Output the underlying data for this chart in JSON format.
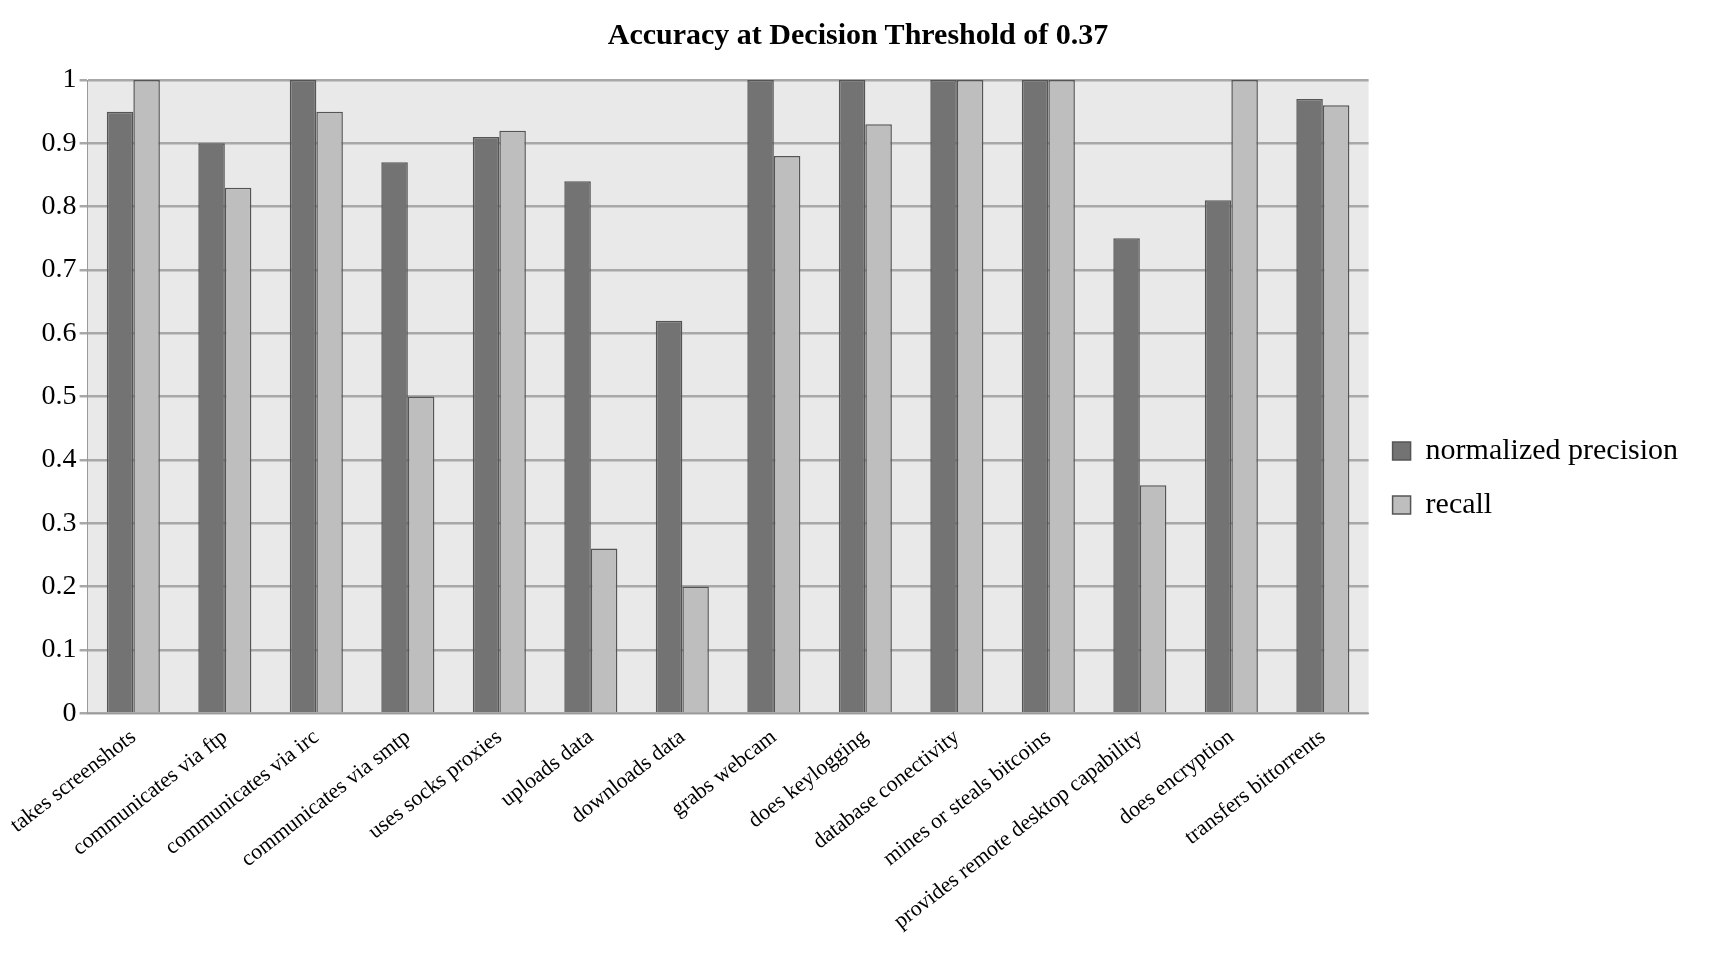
{
  "chart_data": {
    "type": "bar",
    "title": "Accuracy at Decision Threshold of 0.37",
    "categories": [
      "takes screenshots",
      "communicates via ftp",
      "communicates via irc",
      "communicates via smtp",
      "uses socks proxies",
      "uploads data",
      "downloads data",
      "grabs webcam",
      "does keylogging",
      "database conectivity",
      "mines or steals bitcoins",
      "provides remote desktop capability",
      "does encryption",
      "transfers bittorrents"
    ],
    "series": [
      {
        "name": "normalized precision",
        "color": "#737373",
        "values": [
          0.95,
          0.9,
          1,
          0.87,
          0.91,
          0.84,
          0.62,
          1,
          1,
          1,
          1,
          0.75,
          0.81,
          0.97
        ]
      },
      {
        "name": "recall",
        "color": "#bebebe",
        "values": [
          1,
          0.83,
          0.95,
          0.5,
          0.92,
          0.26,
          0.2,
          0.88,
          0.93,
          1,
          1,
          0.36,
          1,
          0.96
        ]
      }
    ],
    "ylim": [
      0,
      1
    ],
    "yticks": [
      0,
      0.1,
      0.2,
      0.3,
      0.4,
      0.5,
      0.6,
      0.7,
      0.8,
      0.9,
      1
    ],
    "grid": "y",
    "legend": "right"
  }
}
